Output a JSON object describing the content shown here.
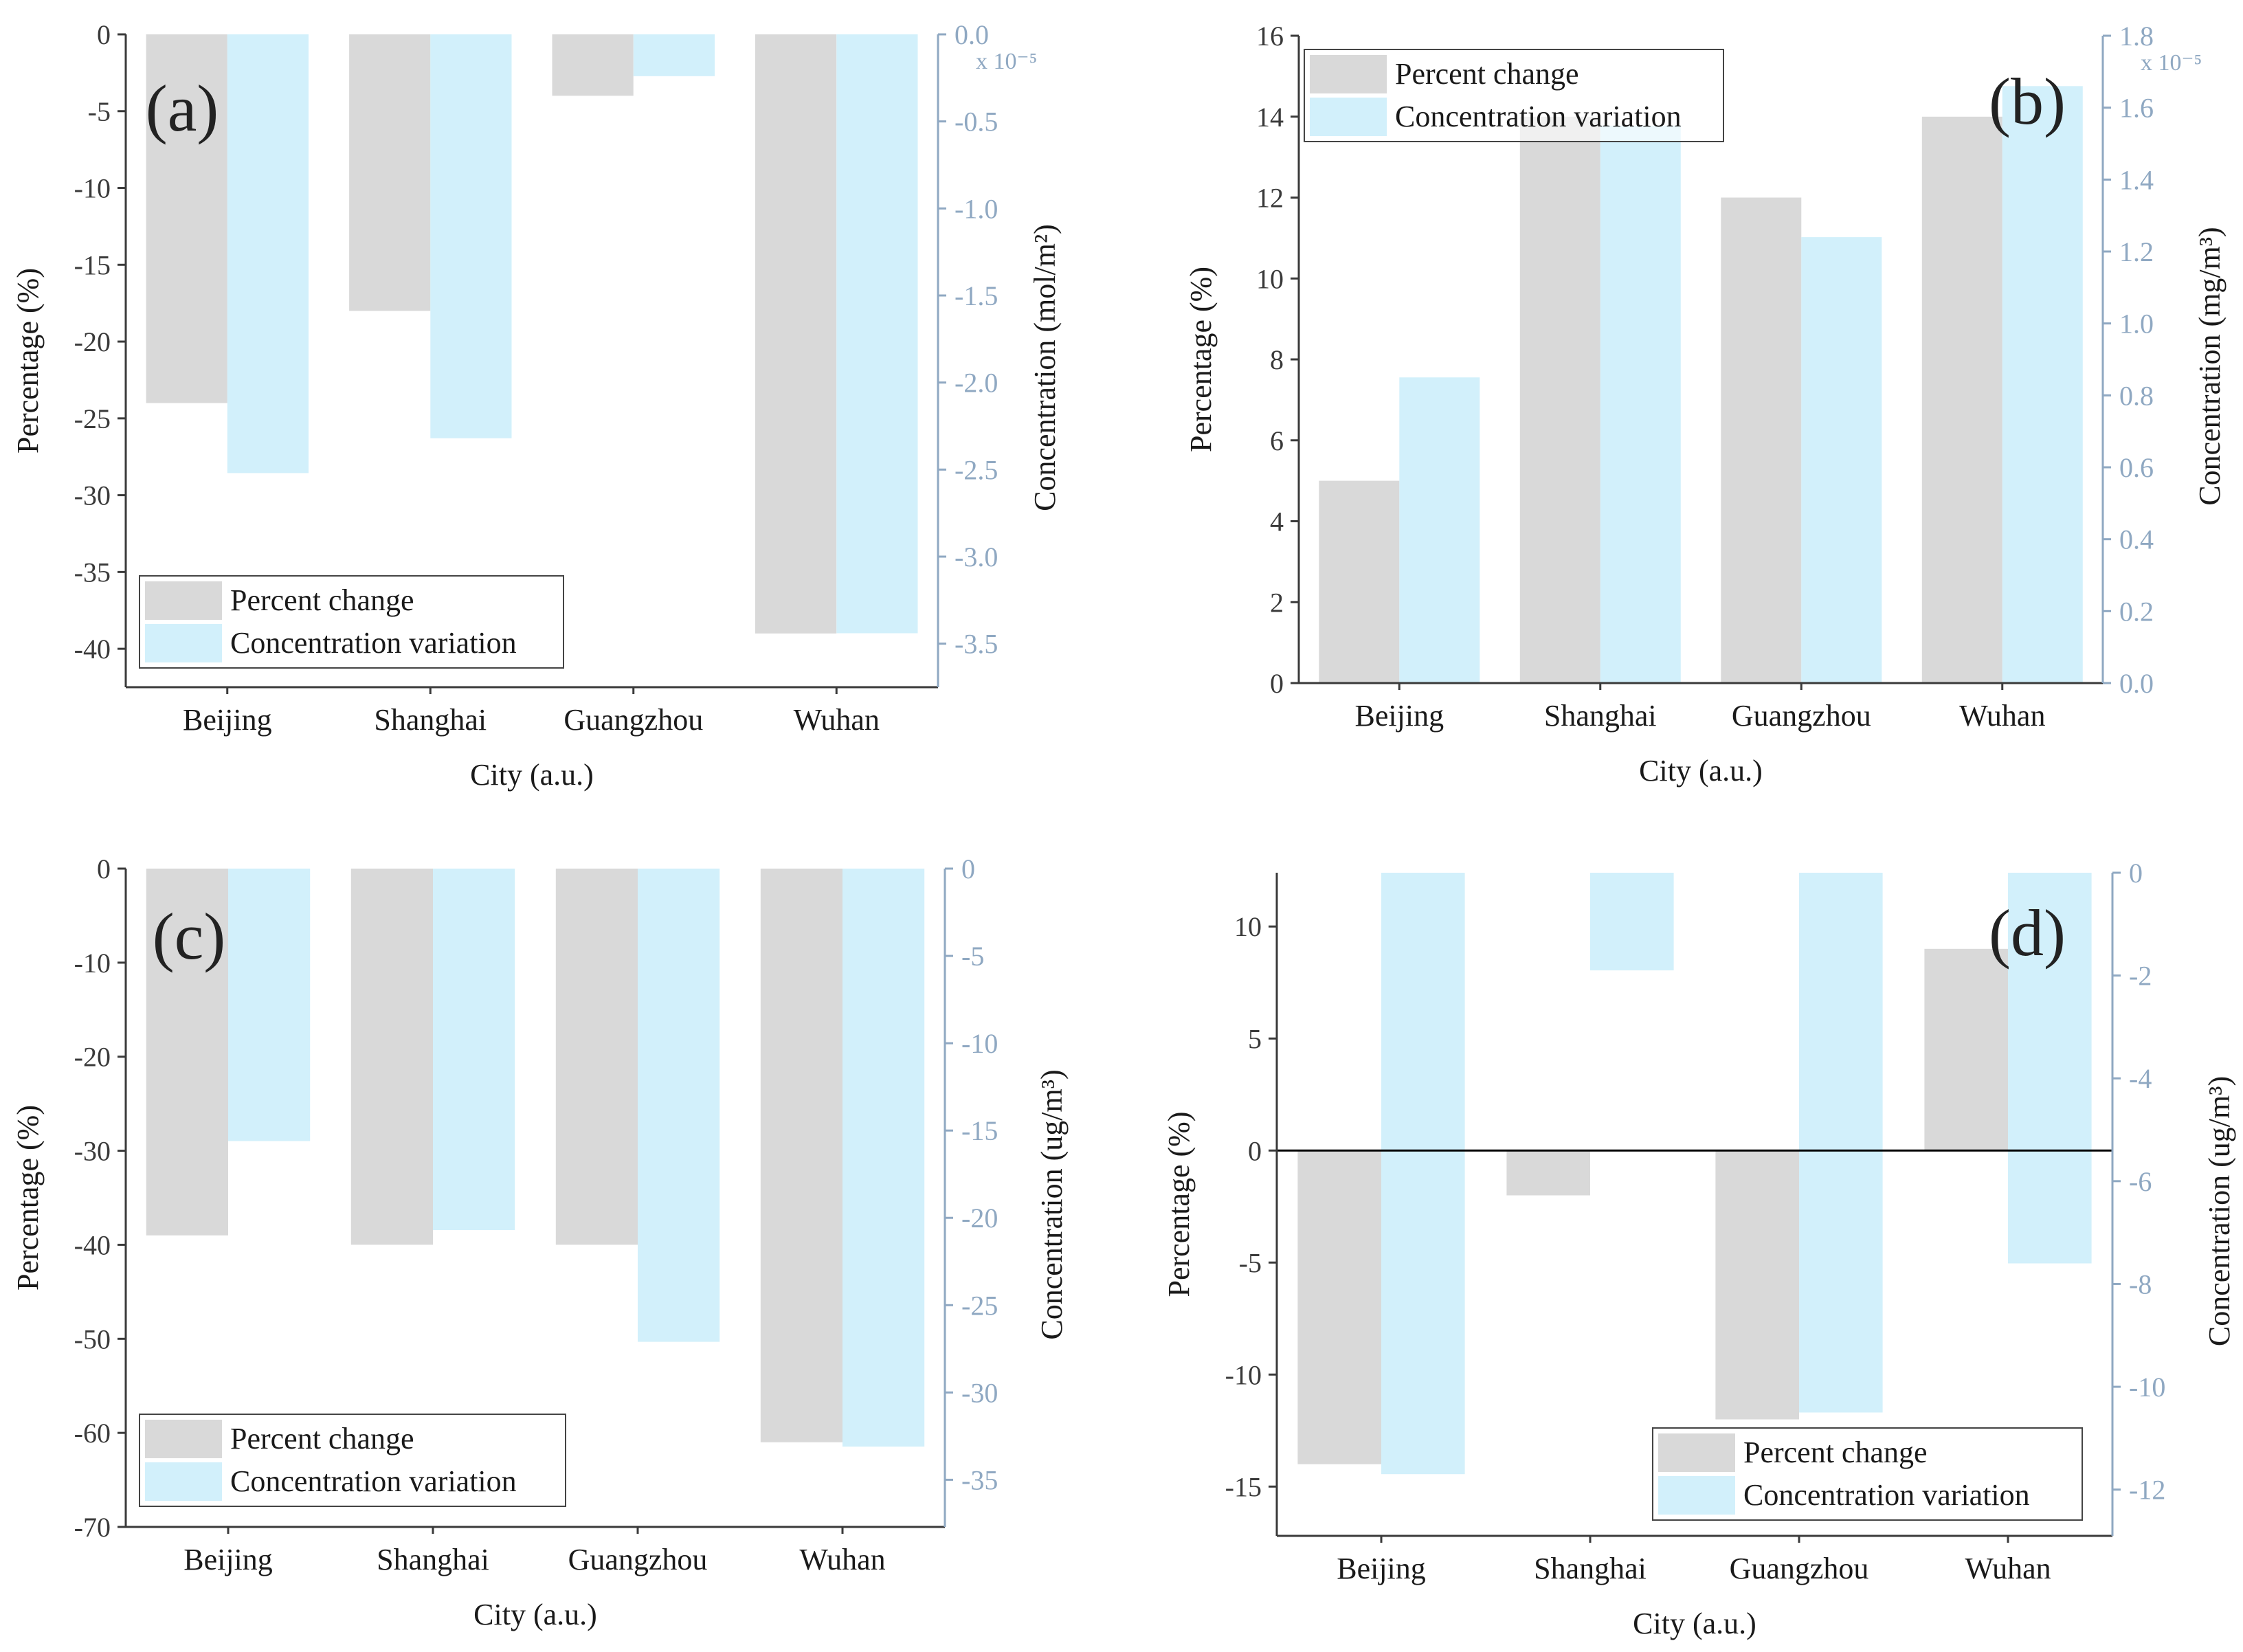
{
  "chart_data": [
    {
      "panel": "(a)",
      "type": "bar",
      "categories": [
        "Beijing",
        "Shanghai",
        "Guangzhou",
        "Wuhan"
      ],
      "xlabel": "City (a.u.)",
      "ylabel": "Percentage (%)",
      "y2label": "Concentration (mol/m²)",
      "y2_multiplier": "x 10⁻⁵",
      "ylim": [
        -42.5,
        0
      ],
      "y2lim": [
        -3.75,
        0
      ],
      "yticks": [
        0,
        -5,
        -10,
        -15,
        -20,
        -25,
        -30,
        -35,
        -40
      ],
      "y2ticks": [
        "0.0",
        "-0.5",
        "-1.0",
        "-1.5",
        "-2.0",
        "-2.5",
        "-3.0",
        "-3.5"
      ],
      "legend_position": "bottom-left",
      "series": [
        {
          "name": "Percent change",
          "axis": "left",
          "color": "#d9d9d9",
          "values": [
            -24,
            -18,
            -4,
            -39
          ]
        },
        {
          "name": "Concentration variation",
          "axis": "right",
          "color": "#d2f0fb",
          "values": [
            -2.52,
            -2.32,
            -0.24,
            -3.44
          ]
        }
      ]
    },
    {
      "panel": "(b)",
      "type": "bar",
      "categories": [
        "Beijing",
        "Shanghai",
        "Guangzhou",
        "Wuhan"
      ],
      "xlabel": "City (a.u.)",
      "ylabel": "Percentage (%)",
      "y2label": "Concentration (mg/m³)",
      "y2_multiplier": "x 10⁻⁵",
      "ylim": [
        0,
        16
      ],
      "y2lim": [
        0,
        1.8
      ],
      "yticks": [
        0,
        2,
        4,
        6,
        8,
        10,
        12,
        14,
        16
      ],
      "y2ticks": [
        "0.0",
        "0.2",
        "0.4",
        "0.6",
        "0.8",
        "1.0",
        "1.2",
        "1.4",
        "1.6",
        "1.8"
      ],
      "legend_position": "top-left",
      "series": [
        {
          "name": "Percent change",
          "axis": "left",
          "color": "#d9d9d9",
          "values": [
            5,
            14,
            12,
            14
          ]
        },
        {
          "name": "Concentration variation",
          "axis": "right",
          "color": "#d2f0fb",
          "values": [
            0.85,
            1.55,
            1.24,
            1.66
          ]
        }
      ]
    },
    {
      "panel": "(c)",
      "type": "bar",
      "categories": [
        "Beijing",
        "Shanghai",
        "Guangzhou",
        "Wuhan"
      ],
      "xlabel": "City (a.u.)",
      "ylabel": "Percentage (%)",
      "y2label": "Concentration (ug/m³)",
      "ylim": [
        -70,
        0
      ],
      "y2lim": [
        -37.7,
        0
      ],
      "yticks": [
        0,
        -10,
        -20,
        -30,
        -40,
        -50,
        -60,
        -70
      ],
      "y2ticks": [
        0,
        -5,
        -10,
        -15,
        -20,
        -25,
        -30,
        -35
      ],
      "legend_position": "bottom-left",
      "series": [
        {
          "name": "Percent change",
          "axis": "left",
          "color": "#d9d9d9",
          "values": [
            -39,
            -40,
            -40,
            -61
          ]
        },
        {
          "name": "Concentration variation",
          "axis": "right",
          "color": "#d2f0fb",
          "values": [
            -15.6,
            -20.7,
            -27.1,
            -33.1
          ]
        }
      ]
    },
    {
      "panel": "(d)",
      "type": "bar",
      "categories": [
        "Beijing",
        "Shanghai",
        "Guangzhou",
        "Wuhan"
      ],
      "xlabel": "City (a.u.)",
      "ylabel": "Percentage (%)",
      "y2label": "Concentration (ug/m³)",
      "ylim": [
        -17.2,
        12.4
      ],
      "y2lim": [
        -12.9,
        0
      ],
      "yticks": [
        10,
        5,
        0,
        -5,
        -10,
        -15
      ],
      "y2ticks": [
        0,
        -2,
        -4,
        -6,
        -8,
        -10,
        -12
      ],
      "legend_position": "bottom-right",
      "zero_line": true,
      "series": [
        {
          "name": "Percent change",
          "axis": "left",
          "color": "#d9d9d9",
          "values": [
            -14,
            -2,
            -12,
            9
          ]
        },
        {
          "name": "Concentration variation",
          "axis": "right",
          "color": "#d2f0fb",
          "values": [
            -11.7,
            -1.9,
            -10.5,
            -7.6
          ]
        }
      ]
    }
  ],
  "colors": {
    "axis_left": "#3a3a3a",
    "axis_right": "#8fa8c2",
    "text": "#1a1a1a"
  }
}
